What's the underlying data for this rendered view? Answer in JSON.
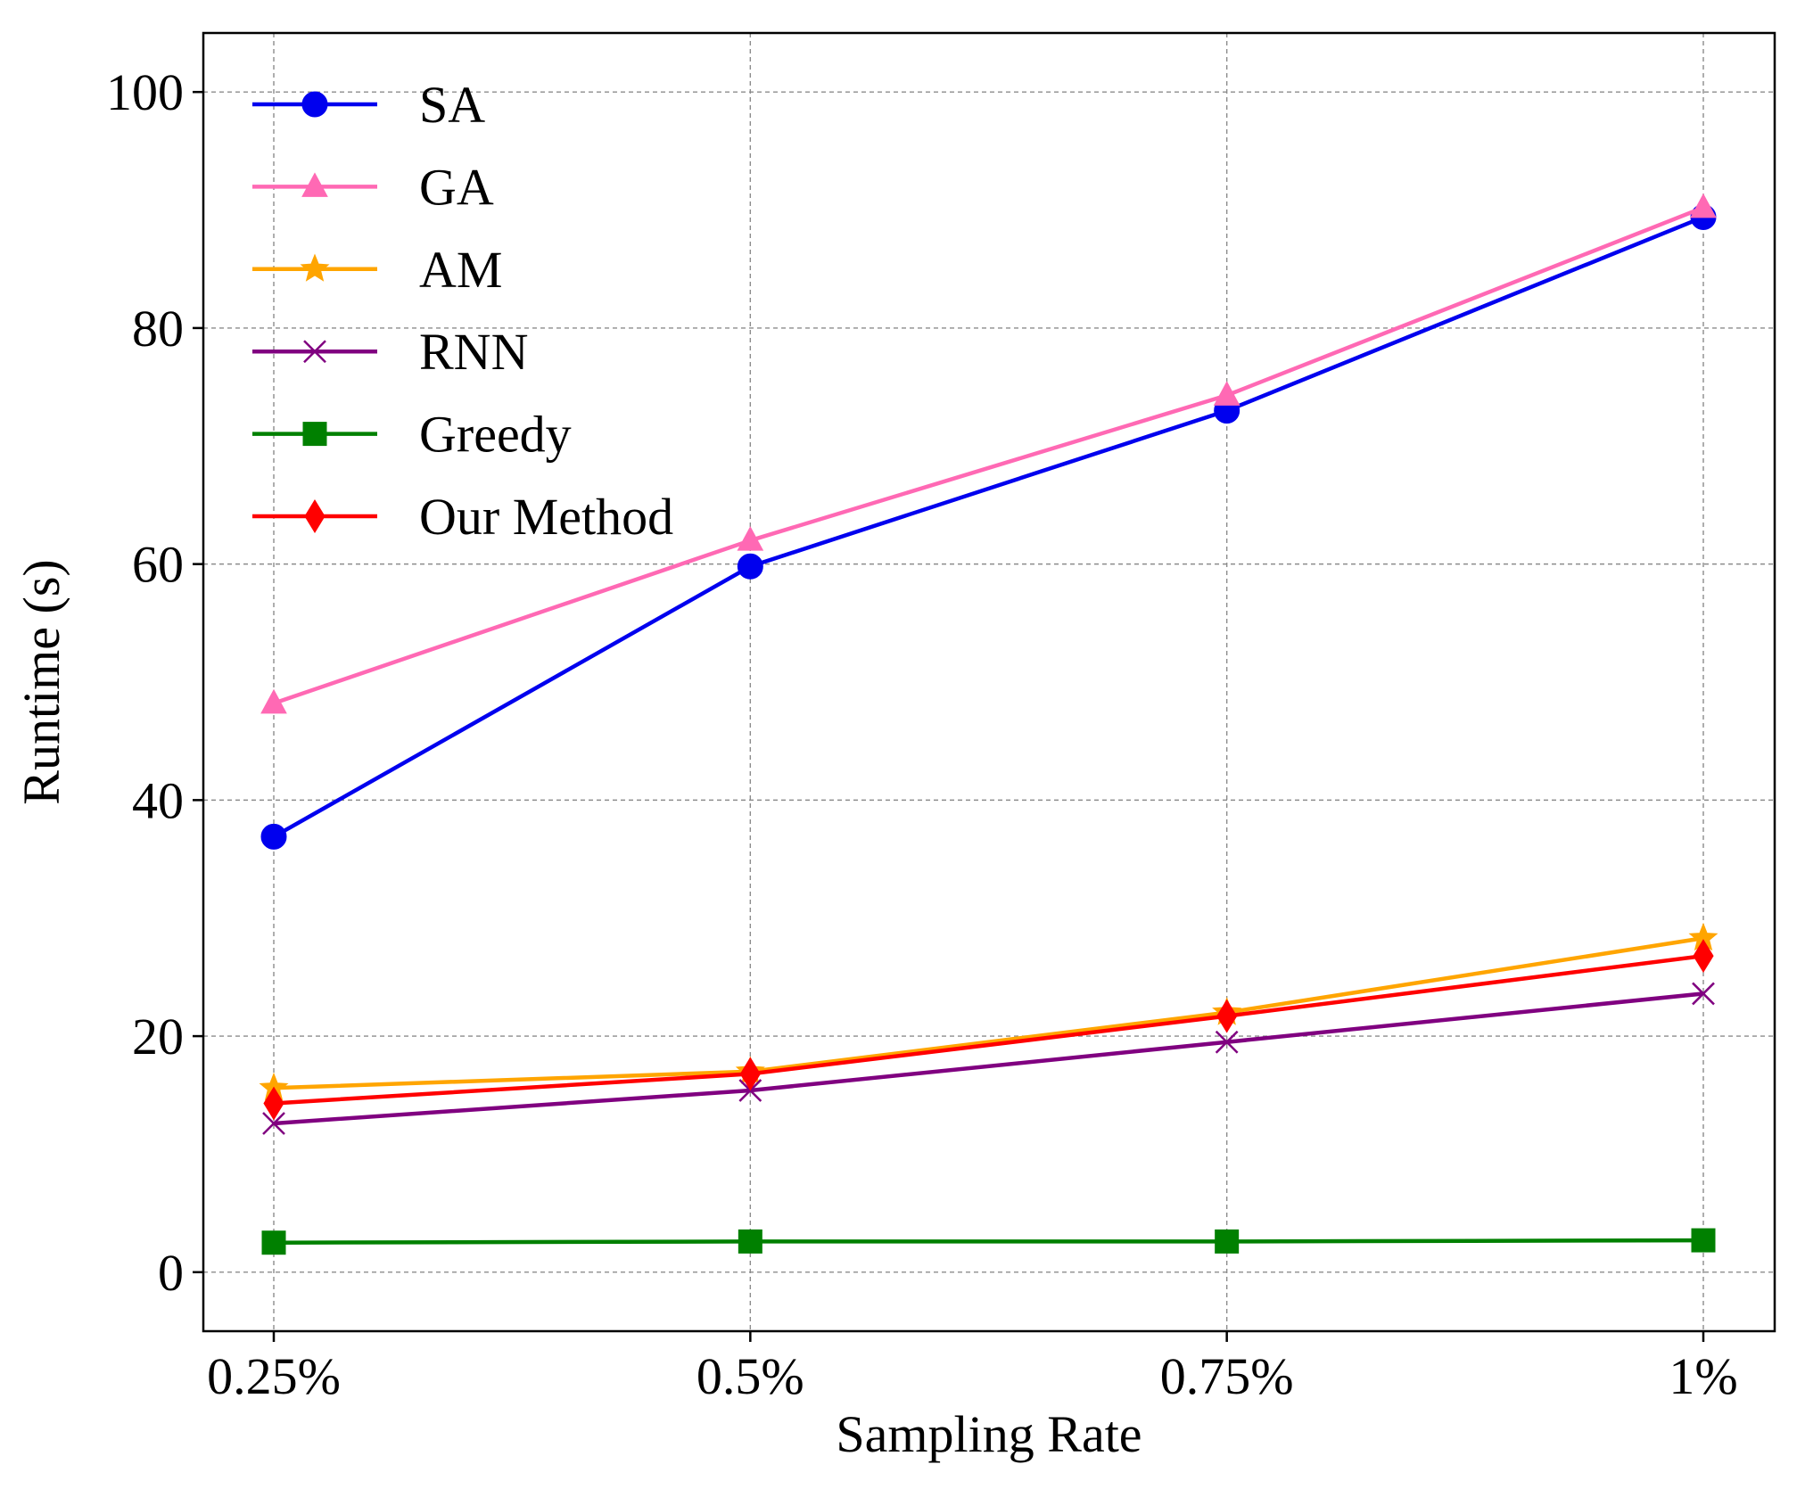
{
  "chart_data": {
    "type": "line",
    "title": "",
    "xlabel": "Sampling Rate",
    "ylabel": "Runtime (s)",
    "categories": [
      "0.25%",
      "0.5%",
      "0.75%",
      "1%"
    ],
    "ylim": [
      -5,
      105
    ],
    "yticks": [
      0,
      20,
      40,
      60,
      80,
      100
    ],
    "grid": true,
    "legend_position": "top-left",
    "series": [
      {
        "name": "SA",
        "color": "#0000ee",
        "marker": "circle",
        "values": [
          36.9,
          59.8,
          73.0,
          89.4
        ]
      },
      {
        "name": "GA",
        "color": "#ff69b4",
        "marker": "triangle",
        "values": [
          48.2,
          62.0,
          74.3,
          90.2
        ]
      },
      {
        "name": "AM",
        "color": "#ffa500",
        "marker": "star",
        "values": [
          15.6,
          17.0,
          22.0,
          28.3
        ]
      },
      {
        "name": "RNN",
        "color": "#800080",
        "marker": "x",
        "values": [
          12.6,
          15.4,
          19.5,
          23.6
        ]
      },
      {
        "name": "Greedy",
        "color": "#008000",
        "marker": "square",
        "values": [
          2.5,
          2.6,
          2.6,
          2.7
        ]
      },
      {
        "name": "Our Method",
        "color": "#ff0000",
        "marker": "diamond",
        "values": [
          14.3,
          16.8,
          21.7,
          26.8
        ]
      }
    ]
  }
}
